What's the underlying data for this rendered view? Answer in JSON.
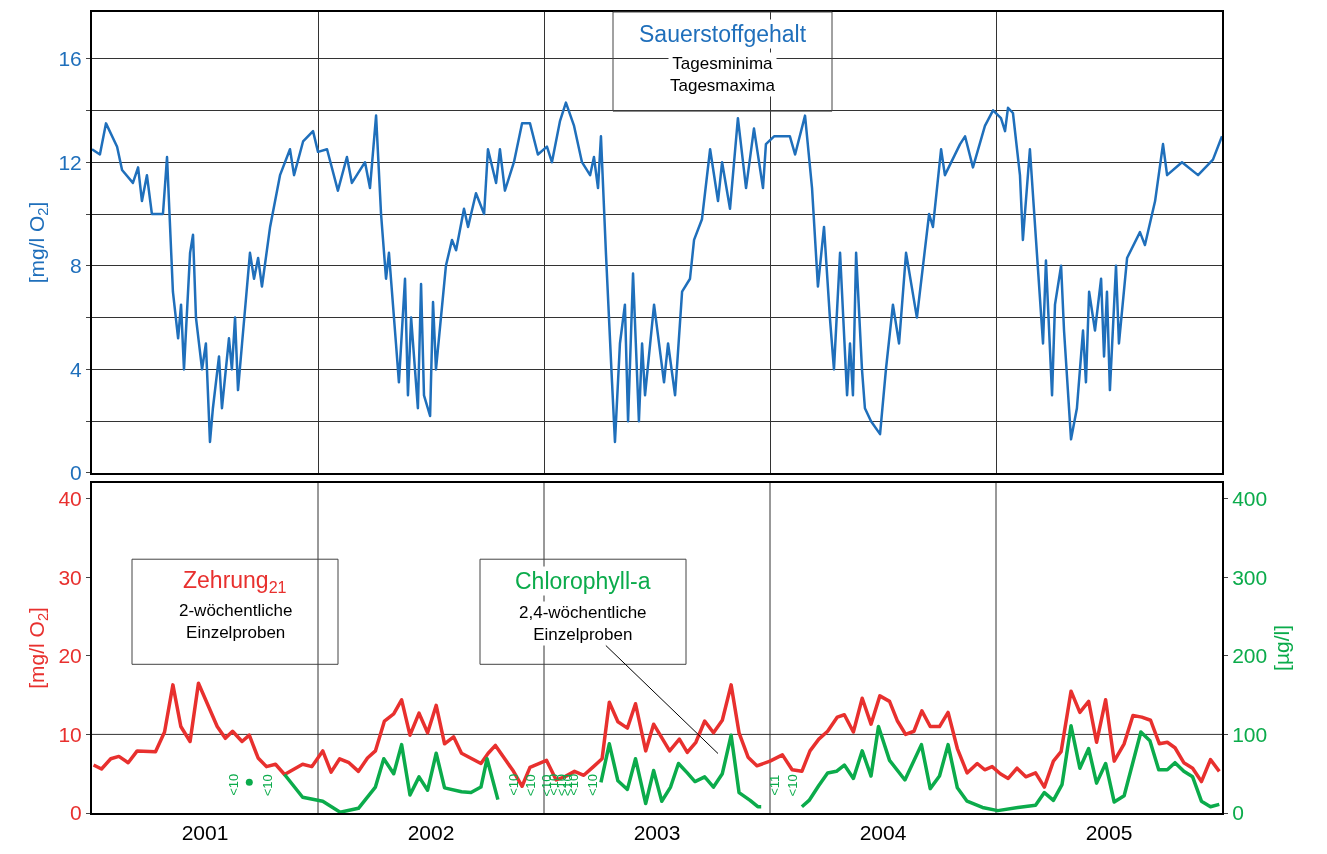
{
  "chart_data": [
    {
      "type": "line",
      "ylabel": "[mg/l O$_{2}$]",
      "annotations": [
        "Tagesminima\nTagesmaxima"
      ],
      "xlim": [
        2001,
        2006
      ],
      "xticks": [
        2002,
        2003,
        2004,
        2005
      ],
      "ylim": [
        0,
        17.8
      ],
      "yticks": [
        0,
        {
          "value": 2,
          "label": null
        },
        4,
        {
          "value": 6,
          "label": null
        },
        8,
        {
          "value": 10,
          "label": null
        },
        12,
        {
          "value": 14,
          "label": null
        },
        16
      ],
      "grid": true,
      "tick_labels": "y",
      "marker": "none",
      "line_style": "solid",
      "series": [
        {
          "name": "Sauerstoffgehalt",
          "color": "#1f6fbb",
          "x": [
            2001.0,
            2001.035,
            2001.062,
            2001.111,
            2001.133,
            2001.181,
            2001.204,
            2001.221,
            2001.243,
            2001.265,
            2001.314,
            2001.332,
            2001.358,
            2001.381,
            2001.394,
            2001.407,
            2001.434,
            2001.447,
            2001.46,
            2001.487,
            2001.504,
            2001.522,
            2001.535,
            2001.562,
            2001.575,
            2001.606,
            2001.619,
            2001.633,
            2001.646,
            2001.664,
            2001.699,
            2001.717,
            2001.735,
            2001.752,
            2001.788,
            2001.832,
            2001.876,
            2001.894,
            2001.934,
            2001.978,
            2002.0,
            2002.04,
            2002.088,
            2002.128,
            2002.15,
            2002.208,
            2002.23,
            2002.257,
            2002.279,
            2002.301,
            2002.314,
            2002.345,
            2002.358,
            2002.385,
            2002.398,
            2002.412,
            2002.442,
            2002.456,
            2002.469,
            2002.496,
            2002.509,
            2002.522,
            2002.566,
            2002.593,
            2002.611,
            2002.646,
            2002.664,
            2002.699,
            2002.735,
            2002.752,
            2002.788,
            2002.805,
            2002.827,
            2002.867,
            2002.903,
            2002.938,
            2002.973,
            2003.013,
            2003.035,
            2003.071,
            2003.097,
            2003.133,
            2003.168,
            2003.204,
            2003.221,
            2003.239,
            2003.252,
            2003.274,
            2003.301,
            2003.314,
            2003.336,
            2003.358,
            2003.372,
            2003.394,
            2003.42,
            2003.434,
            2003.447,
            2003.487,
            2003.531,
            2003.549,
            2003.58,
            2003.611,
            2003.646,
            2003.664,
            2003.699,
            2003.735,
            2003.77,
            2003.788,
            2003.823,
            2003.858,
            2003.894,
            2003.929,
            2003.969,
            2003.982,
            2004.018,
            2004.088,
            2004.111,
            2004.155,
            2004.186,
            2004.212,
            2004.239,
            2004.265,
            2004.283,
            2004.31,
            2004.341,
            2004.354,
            2004.367,
            2004.381,
            2004.407,
            2004.42,
            2004.447,
            2004.487,
            2004.513,
            2004.544,
            2004.571,
            2004.602,
            2004.65,
            2004.704,
            2004.721,
            2004.757,
            2004.774,
            2004.841,
            2004.863,
            2004.898,
            2004.951,
            2004.987,
            2005.022,
            2005.04,
            2005.053,
            2005.075,
            2005.106,
            2005.119,
            2005.15,
            2005.177,
            2005.208,
            2005.221,
            2005.248,
            2005.261,
            2005.288,
            2005.301,
            2005.332,
            2005.358,
            2005.385,
            2005.398,
            2005.412,
            2005.438,
            2005.465,
            2005.478,
            2005.491,
            2005.504,
            2005.531,
            2005.544,
            2005.58,
            2005.637,
            2005.659,
            2005.704,
            2005.739,
            2005.757,
            2005.823,
            2005.894,
            2005.96,
            2006.0
          ],
          "values": [
            12.5,
            12.3,
            13.5,
            12.6,
            11.7,
            11.2,
            11.8,
            10.5,
            11.5,
            10.0,
            10.0,
            12.2,
            7.0,
            5.2,
            6.5,
            4.0,
            8.5,
            9.2,
            6.0,
            4.0,
            5.0,
            1.2,
            2.5,
            4.5,
            2.5,
            5.2,
            4.0,
            6.0,
            3.2,
            5.0,
            8.5,
            7.5,
            8.3,
            7.2,
            9.5,
            11.5,
            12.5,
            11.5,
            12.8,
            13.2,
            12.4,
            12.5,
            10.9,
            12.2,
            11.2,
            12.0,
            11.0,
            13.8,
            10.0,
            7.5,
            8.5,
            5.0,
            3.5,
            7.5,
            3.0,
            6.0,
            2.5,
            7.3,
            3.0,
            2.2,
            6.6,
            4.0,
            8.0,
            9.0,
            8.6,
            10.2,
            9.5,
            10.8,
            10.0,
            12.5,
            11.2,
            12.5,
            10.9,
            12.0,
            13.5,
            13.5,
            12.3,
            12.6,
            12.0,
            13.6,
            14.3,
            13.4,
            12.0,
            11.5,
            12.2,
            11.0,
            13.0,
            8.5,
            3.5,
            1.2,
            5.0,
            6.5,
            2.0,
            7.7,
            2.0,
            5.0,
            3.0,
            6.5,
            3.5,
            5.0,
            3.0,
            7.0,
            7.5,
            9.0,
            9.8,
            12.5,
            10.5,
            12.0,
            10.2,
            13.7,
            11.0,
            13.3,
            11.0,
            12.7,
            13.0,
            13.0,
            12.3,
            13.8,
            11.0,
            7.2,
            9.5,
            6.0,
            4.0,
            8.5,
            3.0,
            5.0,
            3.0,
            8.5,
            4.0,
            2.5,
            2.0,
            1.5,
            4.0,
            6.5,
            5.0,
            8.5,
            6.0,
            10.0,
            9.5,
            12.5,
            11.5,
            12.7,
            13.0,
            11.8,
            13.4,
            14.0,
            13.7,
            13.2,
            14.1,
            13.9,
            11.5,
            9.0,
            12.5,
            9.0,
            5.0,
            8.2,
            3.0,
            6.5,
            8.0,
            5.5,
            1.3,
            2.5,
            5.5,
            3.5,
            7.0,
            5.5,
            7.5,
            4.5,
            7.0,
            3.2,
            8.0,
            5.0,
            8.3,
            9.3,
            8.8,
            10.5,
            12.7,
            11.5,
            12.0,
            11.5,
            12.1,
            13.0
          ]
        }
      ]
    },
    {
      "type": "line",
      "ylabel": "[mg/l O$_{2}$]",
      "y2label": "[µg/l]",
      "annotations": [
        "2-wöchentliche\nEinzelproben",
        "2,4-wöchentliche\nEinzelproben",
        "<10",
        "<10",
        "<10",
        "<10",
        "<10",
        "<10",
        "<10",
        "<10",
        "<10",
        "<10",
        "<11",
        "<10"
      ],
      "xlim": [
        2001,
        2006
      ],
      "xticks": [
        {
          "value": 2001.5,
          "label": "2001"
        },
        {
          "value": 2002.5,
          "label": "2002"
        },
        {
          "value": 2003.5,
          "label": "2003"
        },
        {
          "value": 2004.5,
          "label": "2004"
        },
        {
          "value": 2005.5,
          "label": "2005"
        }
      ],
      "ylim": [
        0,
        42
      ],
      "yticks": [
        0,
        10,
        20,
        30,
        40
      ],
      "y2lim": [
        0,
        420
      ],
      "y2ticks": [
        0,
        100,
        200,
        300,
        400
      ],
      "grid": false,
      "marker": "none",
      "line_style": "solid",
      "ref_lines": [
        {
          "axis": "x",
          "value": 2002,
          "label": null
        },
        {
          "axis": "x",
          "value": 2003,
          "label": null
        },
        {
          "axis": "x",
          "value": 2004,
          "label": null
        },
        {
          "axis": "x",
          "value": 2005,
          "label": null
        },
        {
          "axis": "y",
          "value": 10,
          "label": null
        }
      ],
      "series": [
        {
          "name": "Zehrung$_{21}$",
          "color": "#e8302e",
          "axis": "y",
          "x": [
            2001.007,
            2001.042,
            2001.083,
            2001.119,
            2001.16,
            2001.2,
            2001.281,
            2001.321,
            2001.358,
            2001.393,
            2001.434,
            2001.471,
            2001.554,
            2001.59,
            2001.622,
            2001.664,
            2001.696,
            2001.735,
            2001.772,
            2001.812,
            2001.852,
            2001.932,
            2001.973,
            2002.021,
            2002.058,
            2002.096,
            2002.137,
            2002.179,
            2002.219,
            2002.254,
            2002.294,
            2002.335,
            2002.37,
            2002.407,
            2002.447,
            2002.485,
            2002.523,
            2002.56,
            2002.6,
            2002.635,
            2002.721,
            2002.753,
            2002.785,
            2002.865,
            2002.903,
            2002.938,
            2003.011,
            2003.054,
            2003.091,
            2003.135,
            2003.176,
            2003.219,
            2003.257,
            2003.289,
            2003.327,
            2003.369,
            2003.405,
            2003.45,
            2003.485,
            2003.556,
            2003.599,
            2003.634,
            2003.672,
            2003.711,
            2003.75,
            2003.789,
            2003.828,
            2003.863,
            2003.903,
            2003.942,
            2004.0,
            2004.055,
            2004.098,
            2004.141,
            2004.177,
            2004.216,
            2004.255,
            2004.298,
            2004.329,
            2004.369,
            2004.408,
            2004.447,
            2004.486,
            2004.529,
            2004.564,
            2004.6,
            2004.637,
            2004.672,
            2004.709,
            2004.75,
            2004.788,
            2004.829,
            2004.872,
            2004.917,
            2004.95,
            2004.983,
            2005.019,
            2005.054,
            2005.093,
            2005.132,
            2005.175,
            2005.214,
            2005.254,
            2005.288,
            2005.332,
            2005.371,
            2005.41,
            2005.445,
            2005.485,
            2005.523,
            2005.567,
            2005.606,
            2005.645,
            2005.684,
            2005.723,
            2005.758,
            2005.792,
            2005.831,
            2005.87,
            2005.909,
            2005.949,
            2005.988
          ],
          "values": [
            6.1,
            5.6,
            6.9,
            7.2,
            6.4,
            7.9,
            7.8,
            10.3,
            16.3,
            11.0,
            9.1,
            16.5,
            11.0,
            9.5,
            10.4,
            9.1,
            9.9,
            7.0,
            5.9,
            6.2,
            4.9,
            6.2,
            5.9,
            7.9,
            5.2,
            6.9,
            6.4,
            5.3,
            7.0,
            7.9,
            11.7,
            12.6,
            14.4,
            9.9,
            12.7,
            10.2,
            13.7,
            8.8,
            9.7,
            7.6,
            6.3,
            7.6,
            8.6,
            5.3,
            3.4,
            5.8,
            6.7,
            4.2,
            4.6,
            5.3,
            4.8,
            5.9,
            6.9,
            14.1,
            11.6,
            10.8,
            13.9,
            7.9,
            11.3,
            7.9,
            9.4,
            7.7,
            9.0,
            11.7,
            10.2,
            11.8,
            16.3,
            10.2,
            7.1,
            6.0,
            6.6,
            7.4,
            5.5,
            5.3,
            7.9,
            9.4,
            10.4,
            12.2,
            12.5,
            10.3,
            14.6,
            11.3,
            14.9,
            14.2,
            11.7,
            10.0,
            10.4,
            13.0,
            11.0,
            11.0,
            12.8,
            8.2,
            5.1,
            6.3,
            5.5,
            5.9,
            5.0,
            4.4,
            5.7,
            4.6,
            5.1,
            3.3,
            6.6,
            7.8,
            15.5,
            12.8,
            14.2,
            9.0,
            14.4,
            6.6,
            8.8,
            12.4,
            12.2,
            11.8,
            8.8,
            9.0,
            8.3,
            6.4,
            5.7,
            4.0,
            6.8,
            5.3
          ]
        },
        {
          "name": "Chlorophyll-a",
          "color": "#0bab4b",
          "axis": "y2",
          "x": [
            2001.852,
            2001.932,
            2002.021,
            2002.098,
            2002.179,
            2002.254,
            2002.291,
            2002.335,
            2002.37,
            2002.407,
            2002.447,
            2002.485,
            2002.523,
            2002.56,
            2002.635,
            2002.677,
            2002.721,
            2002.748,
            2002.796,
            2003.0,
            2003.252,
            2003.289,
            2003.327,
            2003.369,
            2003.405,
            2003.45,
            2003.485,
            2003.521,
            2003.56,
            2003.595,
            2003.634,
            2003.668,
            2003.711,
            2003.75,
            2003.789,
            2003.828,
            2003.863,
            2003.912,
            2003.946,
            2003.961,
            2004.05,
            2004.141,
            2004.173,
            2004.216,
            2004.255,
            2004.294,
            2004.329,
            2004.369,
            2004.408,
            2004.447,
            2004.48,
            2004.529,
            2004.597,
            2004.67,
            2004.709,
            2004.75,
            2004.788,
            2004.829,
            2004.872,
            2004.94,
            2005.008,
            2005.097,
            2005.175,
            2005.214,
            2005.254,
            2005.292,
            2005.332,
            2005.371,
            2005.41,
            2005.445,
            2005.485,
            2005.523,
            2005.567,
            2005.641,
            2005.681,
            2005.72,
            2005.758,
            2005.792,
            2005.831,
            2005.87,
            2005.909,
            2005.949,
            2005.988
          ],
          "values": [
            49,
            20,
            15,
            1,
            6,
            33,
            69,
            50,
            87,
            23,
            46,
            29,
            76,
            32,
            27,
            26,
            33,
            69,
            17,
            null,
            39,
            88,
            41,
            30,
            69,
            12,
            54,
            15,
            33,
            63,
            51,
            40,
            46,
            33,
            50,
            99,
            26,
            16,
            8,
            8,
            null,
            8,
            16,
            35,
            51,
            53,
            61,
            44,
            79,
            47,
            110,
            67,
            42,
            87,
            31,
            47,
            87,
            32,
            15,
            7,
            3,
            7,
            10,
            26,
            16,
            36,
            111,
            57,
            82,
            38,
            63,
            14,
            22,
            103,
            92,
            55,
            55,
            64,
            53,
            46,
            15,
            8,
            11
          ]
        },
        {
          "type": "scatter",
          "color": "#0bab4b",
          "axis": "y2",
          "marker": "circle",
          "x": [
            2001.696
          ],
          "values": [
            39
          ]
        }
      ]
    }
  ]
}
